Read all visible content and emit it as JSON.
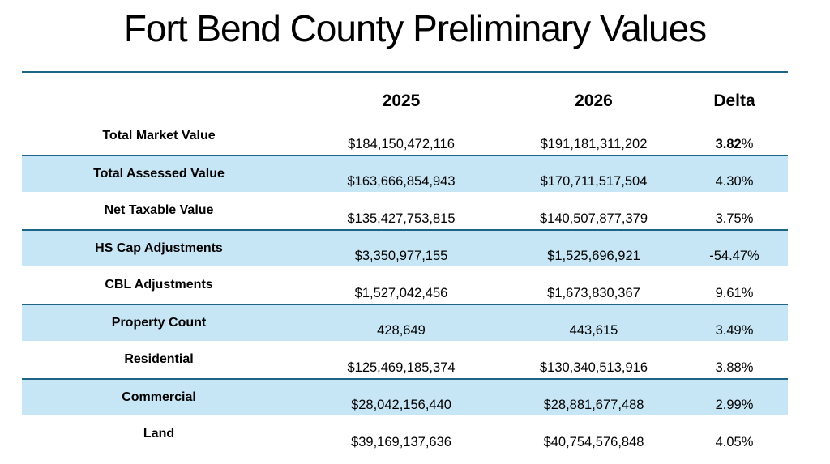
{
  "slide": {
    "title": "Fort Bend County Preliminary Values"
  },
  "colors": {
    "accent_line": "#1E6486",
    "band_fill": "#C6E6F5",
    "text": "#000000"
  },
  "table": {
    "headers": {
      "label_col": "",
      "col2025": "2025",
      "col2026": "2026",
      "delta": "Delta"
    },
    "rows": [
      {
        "label": "Total Market Value",
        "v2025": "$184,150,472,116",
        "v2026": "$191,181,311,202",
        "delta_main": "3.82",
        "delta_unit": "%",
        "delta_bold": true,
        "banded": false
      },
      {
        "label": "Total Assessed Value",
        "v2025": "$163,666,854,943",
        "v2026": "$170,711,517,504",
        "delta": "4.30%",
        "banded": true
      },
      {
        "label": "Net Taxable Value",
        "v2025": "$135,427,753,815",
        "v2026": "$140,507,877,379",
        "delta": "3.75%",
        "banded": false
      },
      {
        "label": "HS Cap Adjustments",
        "v2025": "$3,350,977,155",
        "v2026": "$1,525,696,921",
        "delta": "-54.47%",
        "banded": true
      },
      {
        "label": "CBL Adjustments",
        "v2025": "$1,527,042,456",
        "v2026": "$1,673,830,367",
        "delta": "9.61%",
        "banded": false
      },
      {
        "label": "Property Count",
        "v2025": "428,649",
        "v2026": "443,615",
        "delta": "3.49%",
        "banded": true
      },
      {
        "label": "Residential",
        "v2025": "$125,469,185,374",
        "v2026": "$130,340,513,916",
        "delta": "3.88%",
        "banded": false
      },
      {
        "label": "Commercial",
        "v2025": "$28,042,156,440",
        "v2026": "$28,881,677,488",
        "delta": "2.99%",
        "banded": true
      },
      {
        "label": "Land",
        "v2025": "$39,169,137,636",
        "v2026": "$40,754,576,848",
        "delta": "4.05%",
        "banded": false
      }
    ]
  }
}
